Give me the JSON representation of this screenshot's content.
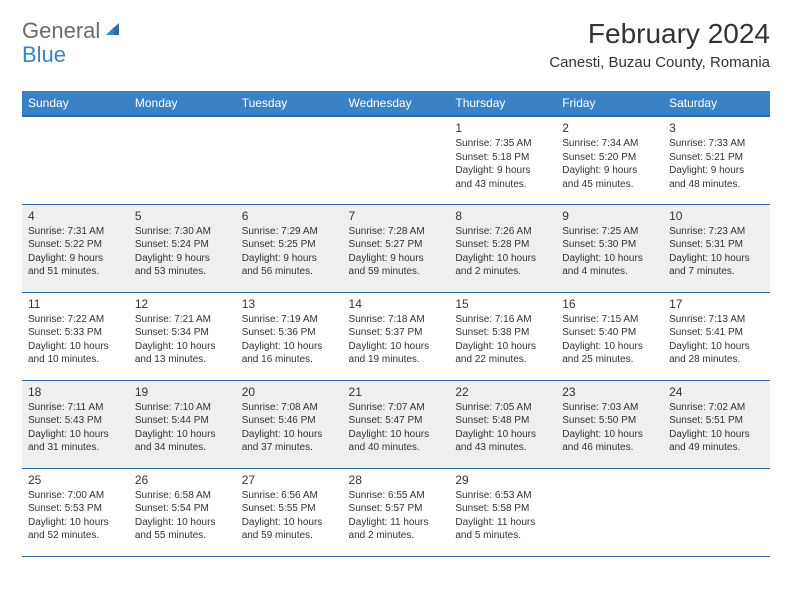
{
  "brand": {
    "part1": "General",
    "part2": "Blue"
  },
  "title": "February 2024",
  "location": "Canesti, Buzau County, Romania",
  "weekdays": [
    "Sunday",
    "Monday",
    "Tuesday",
    "Wednesday",
    "Thursday",
    "Friday",
    "Saturday"
  ],
  "weeks": [
    {
      "alt": false,
      "days": [
        null,
        null,
        null,
        null,
        {
          "n": "1",
          "sr": "Sunrise: 7:35 AM",
          "ss": "Sunset: 5:18 PM",
          "d1": "Daylight: 9 hours",
          "d2": "and 43 minutes."
        },
        {
          "n": "2",
          "sr": "Sunrise: 7:34 AM",
          "ss": "Sunset: 5:20 PM",
          "d1": "Daylight: 9 hours",
          "d2": "and 45 minutes."
        },
        {
          "n": "3",
          "sr": "Sunrise: 7:33 AM",
          "ss": "Sunset: 5:21 PM",
          "d1": "Daylight: 9 hours",
          "d2": "and 48 minutes."
        }
      ]
    },
    {
      "alt": true,
      "days": [
        {
          "n": "4",
          "sr": "Sunrise: 7:31 AM",
          "ss": "Sunset: 5:22 PM",
          "d1": "Daylight: 9 hours",
          "d2": "and 51 minutes."
        },
        {
          "n": "5",
          "sr": "Sunrise: 7:30 AM",
          "ss": "Sunset: 5:24 PM",
          "d1": "Daylight: 9 hours",
          "d2": "and 53 minutes."
        },
        {
          "n": "6",
          "sr": "Sunrise: 7:29 AM",
          "ss": "Sunset: 5:25 PM",
          "d1": "Daylight: 9 hours",
          "d2": "and 56 minutes."
        },
        {
          "n": "7",
          "sr": "Sunrise: 7:28 AM",
          "ss": "Sunset: 5:27 PM",
          "d1": "Daylight: 9 hours",
          "d2": "and 59 minutes."
        },
        {
          "n": "8",
          "sr": "Sunrise: 7:26 AM",
          "ss": "Sunset: 5:28 PM",
          "d1": "Daylight: 10 hours",
          "d2": "and 2 minutes."
        },
        {
          "n": "9",
          "sr": "Sunrise: 7:25 AM",
          "ss": "Sunset: 5:30 PM",
          "d1": "Daylight: 10 hours",
          "d2": "and 4 minutes."
        },
        {
          "n": "10",
          "sr": "Sunrise: 7:23 AM",
          "ss": "Sunset: 5:31 PM",
          "d1": "Daylight: 10 hours",
          "d2": "and 7 minutes."
        }
      ]
    },
    {
      "alt": false,
      "days": [
        {
          "n": "11",
          "sr": "Sunrise: 7:22 AM",
          "ss": "Sunset: 5:33 PM",
          "d1": "Daylight: 10 hours",
          "d2": "and 10 minutes."
        },
        {
          "n": "12",
          "sr": "Sunrise: 7:21 AM",
          "ss": "Sunset: 5:34 PM",
          "d1": "Daylight: 10 hours",
          "d2": "and 13 minutes."
        },
        {
          "n": "13",
          "sr": "Sunrise: 7:19 AM",
          "ss": "Sunset: 5:36 PM",
          "d1": "Daylight: 10 hours",
          "d2": "and 16 minutes."
        },
        {
          "n": "14",
          "sr": "Sunrise: 7:18 AM",
          "ss": "Sunset: 5:37 PM",
          "d1": "Daylight: 10 hours",
          "d2": "and 19 minutes."
        },
        {
          "n": "15",
          "sr": "Sunrise: 7:16 AM",
          "ss": "Sunset: 5:38 PM",
          "d1": "Daylight: 10 hours",
          "d2": "and 22 minutes."
        },
        {
          "n": "16",
          "sr": "Sunrise: 7:15 AM",
          "ss": "Sunset: 5:40 PM",
          "d1": "Daylight: 10 hours",
          "d2": "and 25 minutes."
        },
        {
          "n": "17",
          "sr": "Sunrise: 7:13 AM",
          "ss": "Sunset: 5:41 PM",
          "d1": "Daylight: 10 hours",
          "d2": "and 28 minutes."
        }
      ]
    },
    {
      "alt": true,
      "days": [
        {
          "n": "18",
          "sr": "Sunrise: 7:11 AM",
          "ss": "Sunset: 5:43 PM",
          "d1": "Daylight: 10 hours",
          "d2": "and 31 minutes."
        },
        {
          "n": "19",
          "sr": "Sunrise: 7:10 AM",
          "ss": "Sunset: 5:44 PM",
          "d1": "Daylight: 10 hours",
          "d2": "and 34 minutes."
        },
        {
          "n": "20",
          "sr": "Sunrise: 7:08 AM",
          "ss": "Sunset: 5:46 PM",
          "d1": "Daylight: 10 hours",
          "d2": "and 37 minutes."
        },
        {
          "n": "21",
          "sr": "Sunrise: 7:07 AM",
          "ss": "Sunset: 5:47 PM",
          "d1": "Daylight: 10 hours",
          "d2": "and 40 minutes."
        },
        {
          "n": "22",
          "sr": "Sunrise: 7:05 AM",
          "ss": "Sunset: 5:48 PM",
          "d1": "Daylight: 10 hours",
          "d2": "and 43 minutes."
        },
        {
          "n": "23",
          "sr": "Sunrise: 7:03 AM",
          "ss": "Sunset: 5:50 PM",
          "d1": "Daylight: 10 hours",
          "d2": "and 46 minutes."
        },
        {
          "n": "24",
          "sr": "Sunrise: 7:02 AM",
          "ss": "Sunset: 5:51 PM",
          "d1": "Daylight: 10 hours",
          "d2": "and 49 minutes."
        }
      ]
    },
    {
      "alt": false,
      "days": [
        {
          "n": "25",
          "sr": "Sunrise: 7:00 AM",
          "ss": "Sunset: 5:53 PM",
          "d1": "Daylight: 10 hours",
          "d2": "and 52 minutes."
        },
        {
          "n": "26",
          "sr": "Sunrise: 6:58 AM",
          "ss": "Sunset: 5:54 PM",
          "d1": "Daylight: 10 hours",
          "d2": "and 55 minutes."
        },
        {
          "n": "27",
          "sr": "Sunrise: 6:56 AM",
          "ss": "Sunset: 5:55 PM",
          "d1": "Daylight: 10 hours",
          "d2": "and 59 minutes."
        },
        {
          "n": "28",
          "sr": "Sunrise: 6:55 AM",
          "ss": "Sunset: 5:57 PM",
          "d1": "Daylight: 11 hours",
          "d2": "and 2 minutes."
        },
        {
          "n": "29",
          "sr": "Sunrise: 6:53 AM",
          "ss": "Sunset: 5:58 PM",
          "d1": "Daylight: 11 hours",
          "d2": "and 5 minutes."
        },
        null,
        null
      ]
    }
  ]
}
